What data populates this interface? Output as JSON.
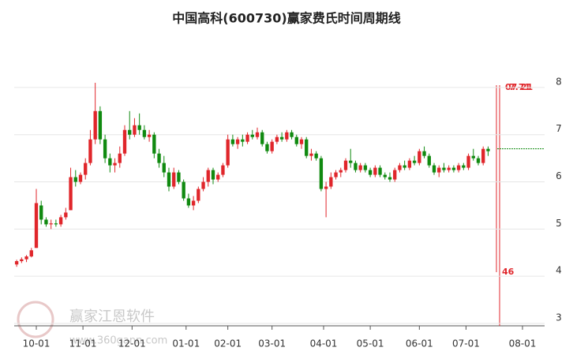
{
  "chart_data": {
    "type": "candlestick",
    "title": "中国高科(600730)赢家费氏时间周期线",
    "up_color": "#e0262b",
    "down_color": "#108a10",
    "xlim": [
      -0.5,
      107.5
    ],
    "xticks": [
      {
        "value": 4,
        "label": "10-01"
      },
      {
        "value": 13.5,
        "label": "11-01"
      },
      {
        "value": 23.5,
        "label": "12-01"
      },
      {
        "value": 34.5,
        "label": "01-01"
      },
      {
        "value": 43,
        "label": "02-01"
      },
      {
        "value": 52,
        "label": "03-01"
      },
      {
        "value": 62.5,
        "label": "04-01"
      },
      {
        "value": 72,
        "label": "05-01"
      },
      {
        "value": 82,
        "label": "06-01"
      },
      {
        "value": 91.5,
        "label": "07-01"
      },
      {
        "value": 103,
        "label": "08-01"
      }
    ],
    "ylim": [
      2.95,
      8.6
    ],
    "yticks": [
      3,
      4,
      5,
      6,
      7,
      8
    ],
    "grid": true,
    "reference_level": 6.7,
    "annotations": [
      "07-21",
      "7.71",
      "46"
    ],
    "watermark": [
      "赢家江恩软件",
      "www.360gann.com"
    ],
    "candles": [
      [
        4.25,
        4.35,
        4.2,
        4.32
      ],
      [
        4.32,
        4.4,
        4.28,
        4.36
      ],
      [
        4.36,
        4.45,
        4.3,
        4.42
      ],
      [
        4.42,
        4.6,
        4.4,
        4.55
      ],
      [
        4.6,
        5.85,
        4.6,
        5.55
      ],
      [
        5.5,
        5.6,
        5.1,
        5.2
      ],
      [
        5.2,
        5.25,
        5.05,
        5.1
      ],
      [
        5.1,
        5.2,
        5.0,
        5.12
      ],
      [
        5.12,
        5.2,
        5.05,
        5.1
      ],
      [
        5.1,
        5.3,
        5.05,
        5.25
      ],
      [
        5.25,
        5.45,
        5.2,
        5.35
      ],
      [
        5.4,
        6.3,
        5.4,
        6.1
      ],
      [
        6.1,
        6.25,
        5.9,
        6.0
      ],
      [
        6.0,
        6.2,
        5.95,
        6.15
      ],
      [
        6.15,
        6.5,
        6.05,
        6.4
      ],
      [
        6.4,
        7.1,
        6.35,
        6.9
      ],
      [
        6.9,
        8.1,
        6.8,
        7.5
      ],
      [
        7.5,
        7.6,
        6.8,
        6.9
      ],
      [
        6.9,
        7.0,
        6.4,
        6.5
      ],
      [
        6.5,
        6.6,
        6.2,
        6.35
      ],
      [
        6.35,
        6.5,
        6.2,
        6.4
      ],
      [
        6.4,
        6.75,
        6.3,
        6.6
      ],
      [
        6.6,
        7.2,
        6.55,
        7.1
      ],
      [
        7.1,
        7.5,
        6.9,
        7.0
      ],
      [
        7.0,
        7.35,
        6.95,
        7.2
      ],
      [
        7.2,
        7.45,
        7.0,
        7.1
      ],
      [
        7.1,
        7.2,
        6.9,
        6.95
      ],
      [
        6.95,
        7.1,
        6.85,
        7.0
      ],
      [
        7.0,
        7.05,
        6.5,
        6.6
      ],
      [
        6.6,
        6.7,
        6.3,
        6.4
      ],
      [
        6.4,
        6.55,
        6.1,
        6.2
      ],
      [
        6.2,
        6.3,
        5.8,
        5.9
      ],
      [
        5.9,
        6.3,
        5.85,
        6.2
      ],
      [
        6.2,
        6.25,
        5.95,
        6.0
      ],
      [
        6.0,
        6.05,
        5.6,
        5.65
      ],
      [
        5.65,
        5.75,
        5.45,
        5.5
      ],
      [
        5.5,
        5.7,
        5.4,
        5.6
      ],
      [
        5.6,
        5.9,
        5.55,
        5.85
      ],
      [
        5.85,
        6.1,
        5.8,
        6.0
      ],
      [
        6.0,
        6.3,
        5.9,
        6.25
      ],
      [
        6.25,
        6.3,
        5.95,
        6.05
      ],
      [
        6.05,
        6.2,
        6.0,
        6.15
      ],
      [
        6.15,
        6.4,
        6.1,
        6.35
      ],
      [
        6.35,
        7.0,
        6.3,
        6.9
      ],
      [
        6.9,
        7.0,
        6.75,
        6.8
      ],
      [
        6.8,
        6.95,
        6.7,
        6.9
      ],
      [
        6.9,
        7.0,
        6.75,
        6.85
      ],
      [
        6.85,
        7.05,
        6.8,
        7.0
      ],
      [
        7.0,
        7.1,
        6.9,
        6.95
      ],
      [
        6.95,
        7.15,
        6.9,
        7.05
      ],
      [
        7.05,
        7.1,
        6.75,
        6.8
      ],
      [
        6.8,
        6.85,
        6.6,
        6.65
      ],
      [
        6.65,
        6.9,
        6.6,
        6.85
      ],
      [
        6.85,
        7.0,
        6.8,
        6.95
      ],
      [
        6.95,
        7.05,
        6.85,
        6.9
      ],
      [
        6.9,
        7.1,
        6.85,
        7.05
      ],
      [
        7.05,
        7.1,
        6.9,
        6.95
      ],
      [
        6.95,
        7.0,
        6.75,
        6.8
      ],
      [
        6.8,
        6.95,
        6.7,
        6.9
      ],
      [
        6.9,
        6.95,
        6.5,
        6.55
      ],
      [
        6.55,
        6.7,
        6.45,
        6.6
      ],
      [
        6.6,
        6.65,
        6.45,
        6.5
      ],
      [
        6.5,
        6.55,
        5.8,
        5.85
      ],
      [
        5.85,
        6.0,
        5.25,
        5.9
      ],
      [
        5.9,
        6.2,
        5.85,
        6.1
      ],
      [
        6.1,
        6.25,
        6.05,
        6.2
      ],
      [
        6.2,
        6.3,
        6.1,
        6.25
      ],
      [
        6.25,
        6.5,
        6.2,
        6.45
      ],
      [
        6.45,
        6.7,
        6.3,
        6.4
      ],
      [
        6.4,
        6.45,
        6.2,
        6.25
      ],
      [
        6.25,
        6.4,
        6.2,
        6.35
      ],
      [
        6.35,
        6.4,
        6.2,
        6.25
      ],
      [
        6.25,
        6.3,
        6.1,
        6.15
      ],
      [
        6.15,
        6.35,
        6.1,
        6.3
      ],
      [
        6.3,
        6.35,
        6.1,
        6.15
      ],
      [
        6.15,
        6.2,
        6.05,
        6.1
      ],
      [
        6.1,
        6.2,
        6.0,
        6.05
      ],
      [
        6.05,
        6.3,
        6.0,
        6.25
      ],
      [
        6.25,
        6.4,
        6.2,
        6.35
      ],
      [
        6.35,
        6.45,
        6.25,
        6.3
      ],
      [
        6.3,
        6.5,
        6.25,
        6.45
      ],
      [
        6.45,
        6.55,
        6.35,
        6.4
      ],
      [
        6.4,
        6.7,
        6.35,
        6.65
      ],
      [
        6.65,
        6.75,
        6.5,
        6.55
      ],
      [
        6.55,
        6.6,
        6.3,
        6.35
      ],
      [
        6.35,
        6.4,
        6.15,
        6.2
      ],
      [
        6.2,
        6.35,
        6.1,
        6.3
      ],
      [
        6.3,
        6.4,
        6.2,
        6.25
      ],
      [
        6.25,
        6.35,
        6.2,
        6.3
      ],
      [
        6.3,
        6.35,
        6.2,
        6.25
      ],
      [
        6.25,
        6.4,
        6.2,
        6.35
      ],
      [
        6.35,
        6.4,
        6.25,
        6.3
      ],
      [
        6.3,
        6.6,
        6.25,
        6.55
      ],
      [
        6.55,
        6.7,
        6.45,
        6.5
      ],
      [
        6.5,
        6.55,
        6.35,
        6.4
      ],
      [
        6.4,
        6.75,
        6.35,
        6.7
      ],
      [
        6.7,
        6.75,
        6.55,
        6.65
      ]
    ]
  }
}
